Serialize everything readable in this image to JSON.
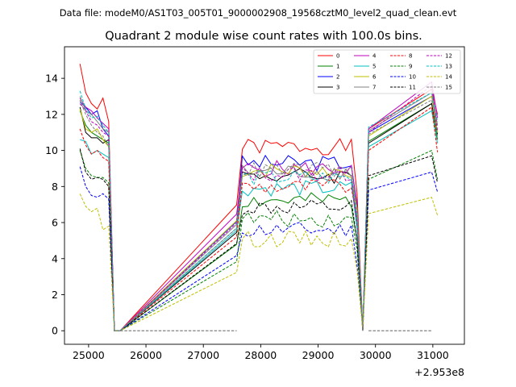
{
  "header": {
    "data_file": "Data file: modeM0/AS1T03_005T01_9000002908_19568cztM0_level2_quad_clean.evt"
  },
  "chart_data": {
    "type": "line",
    "title": "Quadrant 2 module wise count rates with 100.0s bins.",
    "xlabel": "",
    "ylabel": "",
    "x_offset_label": "+2.953e8",
    "xlim": [
      24580,
      31550
    ],
    "ylim": [
      -0.75,
      15.75
    ],
    "xticks": [
      25000,
      26000,
      27000,
      28000,
      29000,
      30000,
      31000
    ],
    "yticks": [
      0,
      2,
      4,
      6,
      8,
      10,
      12,
      14
    ],
    "legend_position": "top-right",
    "grid": false,
    "x": [
      24850,
      24950,
      25050,
      25150,
      25250,
      25350,
      25450,
      25550,
      27580,
      27680,
      27780,
      27880,
      27980,
      28080,
      28180,
      28280,
      28380,
      28480,
      28580,
      28680,
      28780,
      28880,
      28980,
      29080,
      29180,
      29280,
      29380,
      29480,
      29580,
      29680,
      29780,
      29880,
      30980,
      31080,
      31180,
      31280
    ],
    "series": [
      {
        "name": "0",
        "color": "#ff0000",
        "dash": "solid",
        "base": [
          14.8,
          13.2,
          12.6,
          12.3,
          12.9,
          11.6
        ],
        "mid": 10.2,
        "end": [
          11.2,
          13.4,
          12.0
        ],
        "seed": 1
      },
      {
        "name": "1",
        "color": "#008000",
        "dash": "solid",
        "base": [
          12.2,
          11.4,
          11.0,
          10.8,
          10.6,
          10.4
        ],
        "mid": 7.2,
        "end": [
          10.5,
          12.6,
          10.6
        ],
        "seed": 2
      },
      {
        "name": "2",
        "color": "#0000ff",
        "dash": "solid",
        "base": [
          12.7,
          12.4,
          12.0,
          12.2,
          11.2,
          10.8
        ],
        "mid": 9.3,
        "end": [
          11.0,
          13.0,
          11.4
        ],
        "seed": 3
      },
      {
        "name": "3",
        "color": "#000000",
        "dash": "solid",
        "base": [
          12.4,
          11.0,
          10.7,
          10.7,
          10.4,
          10.6
        ],
        "mid": 8.6,
        "end": [
          10.4,
          12.6,
          10.9
        ],
        "seed": 4
      },
      {
        "name": "4",
        "color": "#bf00bf",
        "dash": "solid",
        "base": [
          12.9,
          12.4,
          12.2,
          11.8,
          11.5,
          11.2
        ],
        "mid": 9.0,
        "end": [
          11.2,
          13.8,
          11.8
        ],
        "seed": 5
      },
      {
        "name": "5",
        "color": "#00bfbf",
        "dash": "solid",
        "base": [
          10.6,
          10.5,
          9.8,
          10.0,
          9.8,
          9.6
        ],
        "mid": 7.9,
        "end": [
          10.2,
          12.2,
          10.4
        ],
        "seed": 6
      },
      {
        "name": "6",
        "color": "#bfbf00",
        "dash": "solid",
        "base": [
          12.3,
          11.2,
          11.0,
          11.2,
          10.6,
          10.2
        ],
        "mid": 8.9,
        "end": [
          10.8,
          13.0,
          11.0
        ],
        "seed": 7
      },
      {
        "name": "7",
        "color": "#808080",
        "dash": "solid",
        "base": [
          13.0,
          12.2,
          12.0,
          11.6,
          11.2,
          11.0
        ],
        "mid": 8.8,
        "end": [
          11.1,
          13.2,
          11.4
        ],
        "seed": 8
      },
      {
        "name": "8",
        "color": "#ff0000",
        "dash": "dashed",
        "base": [
          11.2,
          10.3,
          9.8,
          10.0,
          9.6,
          9.4
        ],
        "mid": 8.0,
        "end": [
          10.0,
          12.4,
          9.9
        ],
        "seed": 9
      },
      {
        "name": "9",
        "color": "#008000",
        "dash": "dashed",
        "base": [
          10.0,
          9.0,
          8.6,
          8.5,
          8.5,
          8.2
        ],
        "mid": 6.2,
        "end": [
          8.4,
          10.0,
          8.4
        ],
        "seed": 10
      },
      {
        "name": "10",
        "color": "#0000ff",
        "dash": "dashed",
        "base": [
          9.1,
          8.0,
          7.5,
          7.4,
          7.6,
          7.3
        ],
        "mid": 5.6,
        "end": [
          7.8,
          8.8,
          7.7
        ],
        "seed": 11
      },
      {
        "name": "11",
        "color": "#000000",
        "dash": "dashed",
        "base": [
          10.1,
          8.8,
          8.4,
          8.5,
          8.4,
          8.0
        ],
        "mid": 6.8,
        "end": [
          8.6,
          9.7,
          8.2
        ],
        "seed": 12
      },
      {
        "name": "12",
        "color": "#bf00bf",
        "dash": "dashed",
        "base": [
          12.6,
          12.2,
          11.6,
          11.4,
          11.0,
          10.8
        ],
        "mid": 8.7,
        "end": [
          11.0,
          13.6,
          11.1
        ],
        "seed": 13
      },
      {
        "name": "13",
        "color": "#00bfbf",
        "dash": "dashed",
        "base": [
          13.3,
          12.3,
          11.8,
          11.9,
          11.4,
          11.0
        ],
        "mid": 8.5,
        "end": [
          11.3,
          13.2,
          11.6
        ],
        "seed": 14
      },
      {
        "name": "14",
        "color": "#bfbf00",
        "dash": "dashed",
        "base": [
          7.6,
          6.9,
          6.6,
          6.8,
          5.6,
          5.8
        ],
        "mid": 5.1,
        "end": [
          6.5,
          7.4,
          6.4
        ],
        "seed": 15
      },
      {
        "name": "15",
        "color": "#808080",
        "dash": "dashed",
        "base": [
          12.8,
          12.0,
          11.4,
          11.0,
          10.8,
          10.2
        ],
        "mid": 8.9,
        "end": [
          10.9,
          12.8,
          10.8
        ],
        "seed": 16
      }
    ]
  }
}
